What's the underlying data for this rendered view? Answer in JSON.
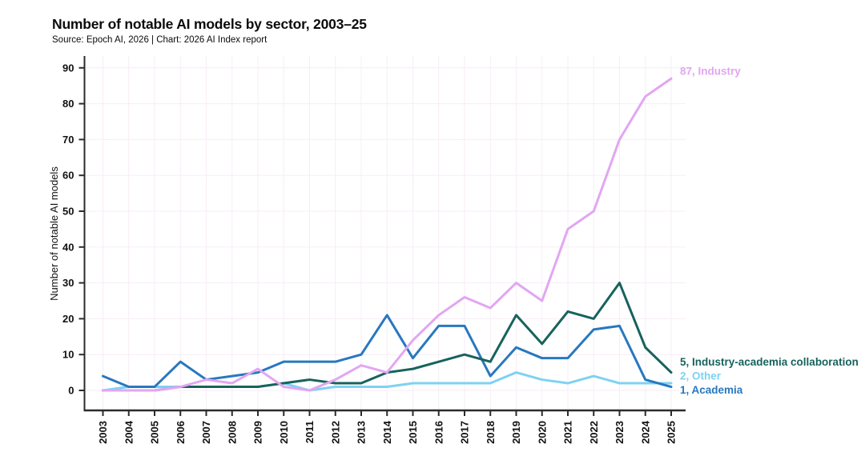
{
  "chart_data": {
    "type": "line",
    "title": "Number of notable AI models by sector, 2003–25",
    "subtitle": "Source: Epoch AI, 2026 | Chart: 2026 AI Index report",
    "ylabel": "Number of notable AI models",
    "ylim": [
      0,
      90
    ],
    "ytick_step": 10,
    "yticks": [
      0,
      10,
      20,
      30,
      40,
      50,
      60,
      70,
      80,
      90
    ],
    "grid": true,
    "legend_position": "right-end-labels",
    "x": [
      2003,
      2004,
      2005,
      2006,
      2007,
      2008,
      2009,
      2010,
      2011,
      2012,
      2013,
      2014,
      2015,
      2016,
      2017,
      2018,
      2019,
      2020,
      2021,
      2022,
      2023,
      2024,
      2025
    ],
    "series": [
      {
        "name": "Industry",
        "end_label": "87, Industry",
        "color": "#e2a6f2",
        "values": [
          0,
          0,
          0,
          1,
          3,
          2,
          6,
          1,
          0,
          3,
          7,
          5,
          14,
          21,
          26,
          23,
          30,
          25,
          45,
          50,
          70,
          82,
          87
        ]
      },
      {
        "name": "Industry-academia collaboration",
        "end_label": "5, Industry-academia collaboration",
        "color": "#17635c",
        "values": [
          0,
          0,
          0,
          1,
          1,
          1,
          1,
          2,
          3,
          2,
          2,
          5,
          6,
          8,
          10,
          8,
          21,
          13,
          22,
          20,
          30,
          12,
          5
        ]
      },
      {
        "name": "Other",
        "end_label": "2, Other",
        "color": "#7ed2f2",
        "values": [
          0,
          1,
          1,
          1,
          1,
          1,
          1,
          2,
          0,
          1,
          1,
          1,
          2,
          2,
          2,
          2,
          5,
          3,
          2,
          4,
          2,
          2,
          2
        ]
      },
      {
        "name": "Academia",
        "end_label": "1, Academia",
        "color": "#2878bf",
        "values": [
          4,
          1,
          1,
          8,
          3,
          4,
          5,
          8,
          8,
          8,
          10,
          21,
          9,
          18,
          18,
          4,
          12,
          9,
          9,
          17,
          18,
          3,
          1
        ]
      }
    ]
  }
}
